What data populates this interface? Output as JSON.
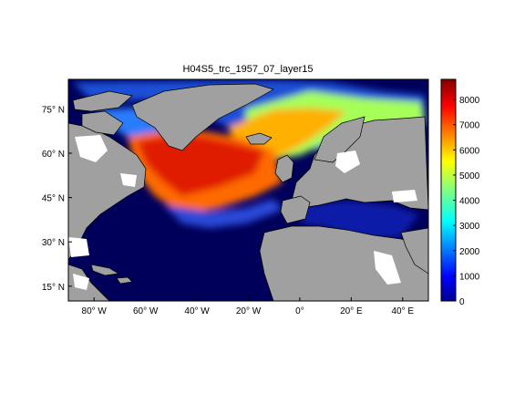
{
  "title": "H04S5_trc_1957_07_layer15",
  "map": {
    "lon_range": [
      -90,
      50
    ],
    "lat_range": [
      10,
      85
    ],
    "x_ticks": [
      {
        "value": -80,
        "label": "80° W"
      },
      {
        "value": -60,
        "label": "60° W"
      },
      {
        "value": -40,
        "label": "40° W"
      },
      {
        "value": -20,
        "label": "20° W"
      },
      {
        "value": 0,
        "label": "0°"
      },
      {
        "value": 20,
        "label": "20° E"
      },
      {
        "value": 40,
        "label": "40° E"
      }
    ],
    "y_ticks": [
      {
        "value": 15,
        "label": "15° N"
      },
      {
        "value": 30,
        "label": "30° N"
      },
      {
        "value": 45,
        "label": "45° N"
      },
      {
        "value": 60,
        "label": "60° N"
      },
      {
        "value": 75,
        "label": "75° N"
      }
    ],
    "land_color": "#a0a0a0",
    "nodata_color": "#ffffff",
    "background_ocean_color": "#00005a"
  },
  "colorbar": {
    "range": [
      0,
      8800
    ],
    "ticks": [
      {
        "value": 0,
        "label": "0"
      },
      {
        "value": 1000,
        "label": "1000"
      },
      {
        "value": 2000,
        "label": "2000"
      },
      {
        "value": 3000,
        "label": "3000"
      },
      {
        "value": 4000,
        "label": "4000"
      },
      {
        "value": 5000,
        "label": "5000"
      },
      {
        "value": 6000,
        "label": "6000"
      },
      {
        "value": 7000,
        "label": "7000"
      },
      {
        "value": 8000,
        "label": "8000"
      }
    ],
    "colormap": "jet"
  }
}
